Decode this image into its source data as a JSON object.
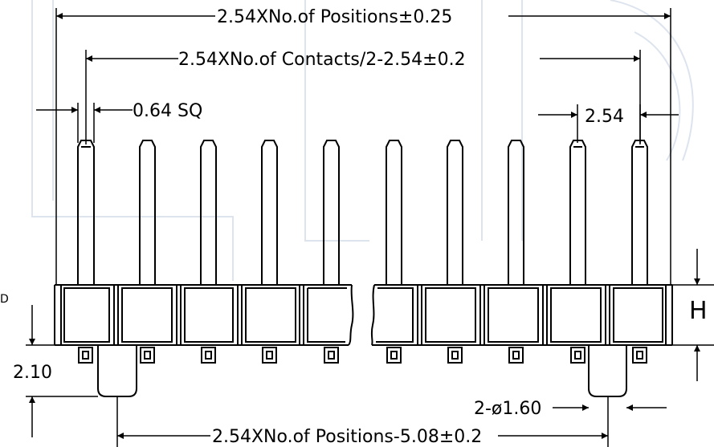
{
  "dimensions": {
    "positions_total": "2.54XNo.of Positions±0.25",
    "contacts": "2.54XNo.of Contacts/2-2.54±0.2",
    "pin_square": "0.64 SQ",
    "pitch": "2.54",
    "height_label": "H",
    "offset": "2.10",
    "holes": "2-ø1.60",
    "positions_bottom": "2.54XNo.of Positions-5.08±0.2",
    "edge_fragment": "D"
  }
}
